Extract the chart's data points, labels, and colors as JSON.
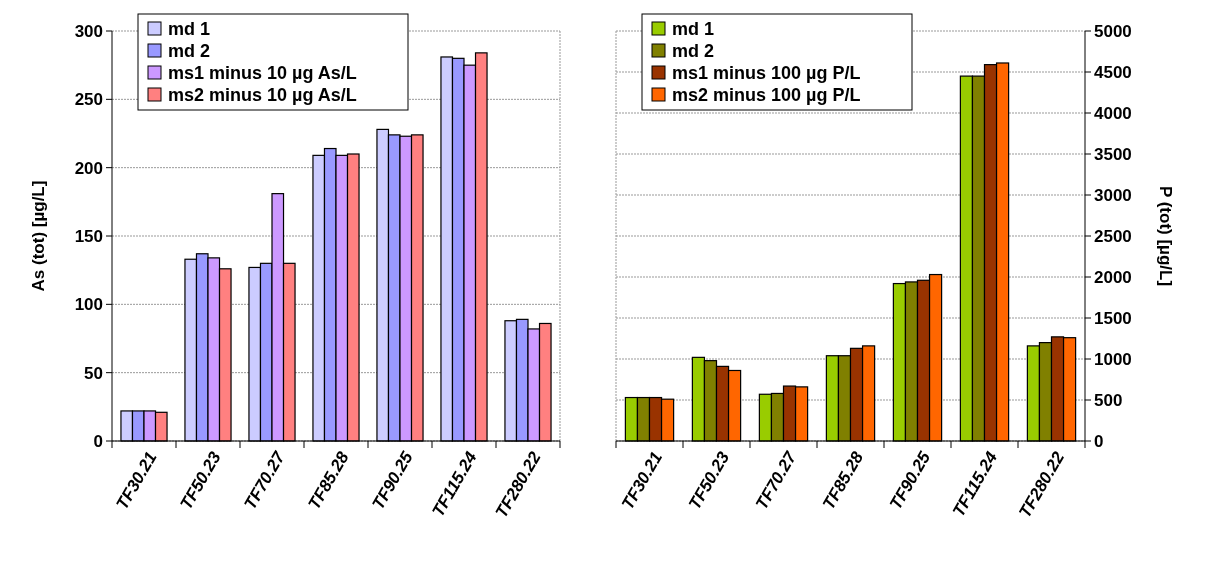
{
  "chart_data": [
    {
      "type": "bar",
      "ylabel": "As (tot) [µg/L]",
      "categories": [
        "TF30.21",
        "TF50.23",
        "TF70.27",
        "TF85.28",
        "TF90.25",
        "TF115.24",
        "TF280.22"
      ],
      "series": [
        {
          "name": "md 1",
          "color": "#ccccff",
          "values": [
            22,
            133,
            127,
            209,
            228,
            281,
            88
          ]
        },
        {
          "name": "md 2",
          "color": "#9999ff",
          "values": [
            22,
            137,
            130,
            214,
            224,
            280,
            89
          ]
        },
        {
          "name": "ms1 minus 10 µg As/L",
          "color": "#cc99ff",
          "values": [
            22,
            134,
            181,
            209,
            223,
            275,
            82
          ]
        },
        {
          "name": "ms2 minus 10 µg As/L",
          "color": "#ff8080",
          "values": [
            21,
            126,
            130,
            210,
            224,
            284,
            86
          ]
        }
      ],
      "ylim": [
        0,
        300
      ],
      "yticks": [
        0,
        50,
        100,
        150,
        200,
        250,
        300
      ],
      "grid": "y",
      "legend": "top left"
    },
    {
      "type": "bar",
      "y2label": "P (tot) [µg/L]",
      "categories": [
        "TF30.21",
        "TF50.23",
        "TF70.27",
        "TF85.28",
        "TF90.25",
        "TF115.24",
        "TF280.22"
      ],
      "series": [
        {
          "name": "md 1",
          "color": "#99cc00",
          "axis": "y2",
          "values": [
            530,
            1020,
            570,
            1040,
            1920,
            4450,
            1160
          ]
        },
        {
          "name": "md 2",
          "color": "#808000",
          "axis": "y2",
          "values": [
            530,
            980,
            580,
            1040,
            1940,
            4450,
            1200
          ]
        },
        {
          "name": "ms1 minus 100 µg P/L",
          "color": "#993300",
          "axis": "y2",
          "values": [
            530,
            910,
            670,
            1130,
            1960,
            4590,
            1270
          ]
        },
        {
          "name": "ms2 minus 100 µg P/L",
          "color": "#ff6600",
          "axis": "y2",
          "values": [
            510,
            860,
            660,
            1160,
            2030,
            4610,
            1260
          ]
        }
      ],
      "y2lim": [
        0,
        5000
      ],
      "y2ticks": [
        0,
        500,
        1000,
        1500,
        2000,
        2500,
        3000,
        3500,
        4000,
        4500,
        5000
      ],
      "grid": "y",
      "legend": "top left"
    }
  ]
}
